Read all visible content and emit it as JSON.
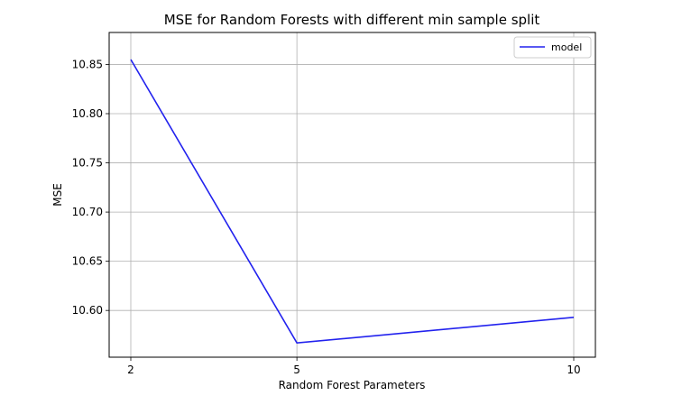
{
  "chart_data": {
    "type": "line",
    "title": "MSE for Random Forests with different min sample split",
    "xlabel": "Random Forest Parameters",
    "ylabel": "MSE",
    "categories": [
      "2",
      "5",
      "10"
    ],
    "series": [
      {
        "name": "model",
        "values": [
          10.855,
          10.567,
          10.593
        ],
        "color": "#2222ee"
      }
    ],
    "ylim": [
      10.5525,
      10.8825
    ],
    "yticks": [
      10.6,
      10.65,
      10.7,
      10.75,
      10.8,
      10.85
    ],
    "ytick_labels": [
      "10.60",
      "10.65",
      "10.70",
      "10.75",
      "10.80",
      "10.85"
    ],
    "grid": true,
    "legend": {
      "position": "top-right"
    }
  }
}
